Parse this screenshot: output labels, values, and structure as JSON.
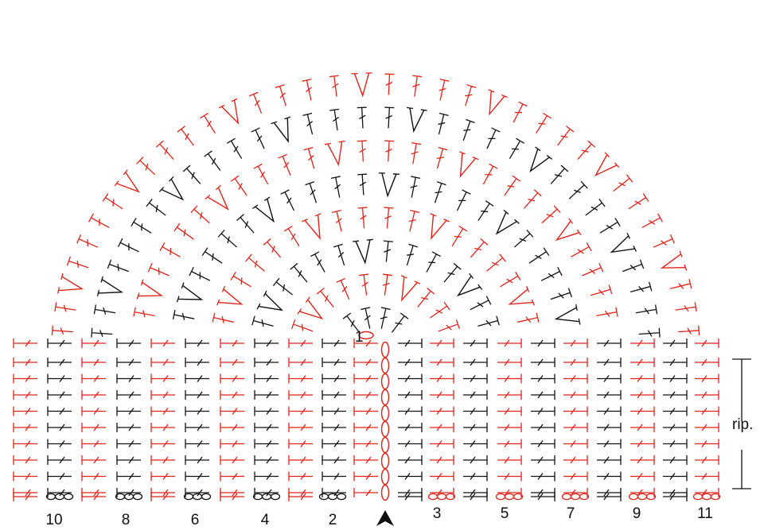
{
  "colors": {
    "red": "#e2231a",
    "black": "#111111"
  },
  "column_numbers_left": [
    "10",
    "8",
    "6",
    "4",
    "2"
  ],
  "column_numbers_right": [
    "3",
    "5",
    "7",
    "9",
    "11"
  ],
  "start_label": "1",
  "repeat_label": "rip.",
  "start_arrow_icon": "arrowhead-up-icon",
  "body_rows": 9,
  "yoke_rows": 8
}
